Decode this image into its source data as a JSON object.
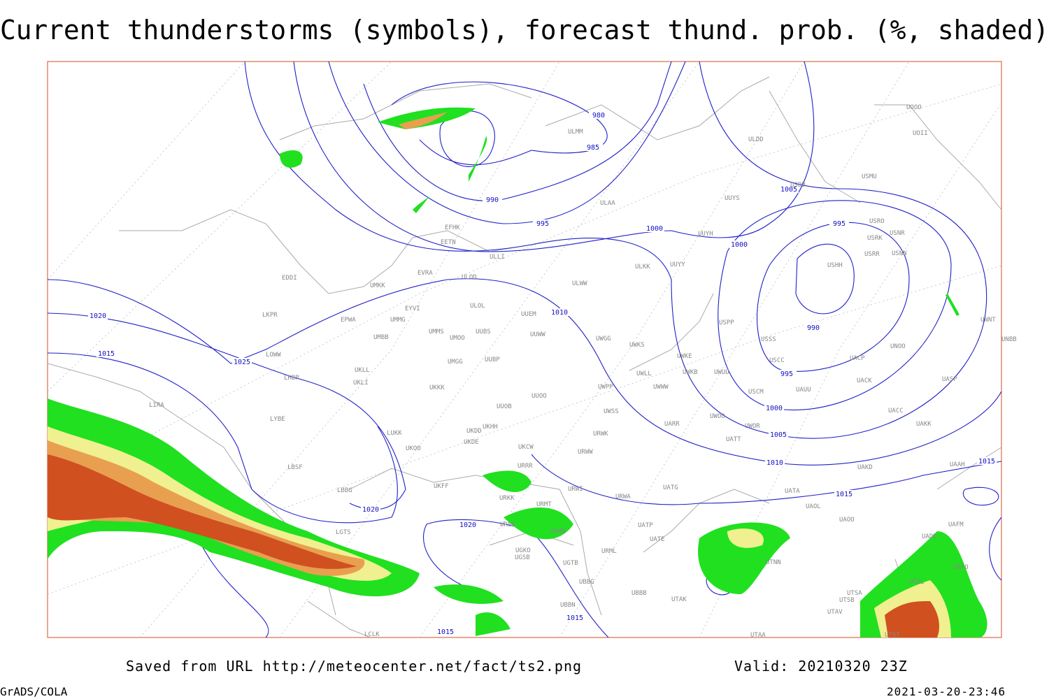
{
  "title": "Current thunderstorms (symbols), forecast thund. prob. (%, shaded)",
  "isobar_labels": [
    980,
    985,
    990,
    995,
    1000,
    1000,
    995,
    990,
    995,
    1000,
    1005,
    1005,
    1010,
    1010,
    1015,
    1015,
    1015,
    1020,
    1025,
    1020,
    1020,
    1015,
    1015
  ],
  "stations": [
    "ULMM",
    "ULDD",
    "UUYS",
    "ULAA",
    "EFHK",
    "EETN",
    "ULLI",
    "UUYH",
    "ULKK",
    "UUYY",
    "EVRA",
    "ULOD",
    "EDDI",
    "UMKK",
    "ULWW",
    "EYVI",
    "ULOL",
    "UUEM",
    "LKPR",
    "EPWA",
    "UMMG",
    "UMMS",
    "UUBS",
    "UMOO",
    "UUWW",
    "UWGG",
    "UWKS",
    "USPP",
    "USSS",
    "UMBB",
    "LOWW",
    "UUBP",
    "UMGG",
    "UWKE",
    "UWKB",
    "UWUU",
    "USCC",
    "UACP",
    "UNOO",
    "UKLL",
    "UKLI",
    "LHBP",
    "UWLL",
    "UWWW",
    "USCM",
    "UAUU",
    "UACK",
    "UASP",
    "UKKK",
    "UWPP",
    "UUOO",
    "LIRA",
    "UUOB",
    "UWSS",
    "UACC",
    "UAKK",
    "LYBE",
    "UKHH",
    "UKDD",
    "UWOO",
    "UARR",
    "UWOR",
    "LUKK",
    "UKDE",
    "UKOO",
    "URWK",
    "UKCW",
    "UATT",
    "URWW",
    "LBSF",
    "UKFF",
    "URRR",
    "UAKD",
    "LBBG",
    "URKK",
    "URWI",
    "UATG",
    "URWA",
    "UATA",
    "UAOL",
    "UAOO",
    "URMT",
    "URSS",
    "URMN",
    "UATE",
    "UATP",
    "LGTS",
    "URML",
    "UGKO",
    "UGSB",
    "UTNN",
    "UGTB",
    "UBBG",
    "UBBB",
    "UTAK",
    "UBBN",
    "UTSA",
    "UTSB",
    "UTAV",
    "UTST",
    "UTAA",
    "LCLK",
    "UAAH",
    "UAFM",
    "UADD",
    "UAFO",
    "UTDL",
    "USDD",
    "USMU",
    "USRO",
    "USRK",
    "USNR",
    "USRR",
    "USNN",
    "USHH",
    "UNNT",
    "UNBB",
    "UOOO",
    "UOII"
  ],
  "footer": {
    "source": "Saved from URL http://meteocenter.net/fact/ts2.png",
    "valid": "Valid: 20210320 23Z",
    "software": "GrADS/COLA",
    "timestamp": "2021-03-20-23:46"
  }
}
